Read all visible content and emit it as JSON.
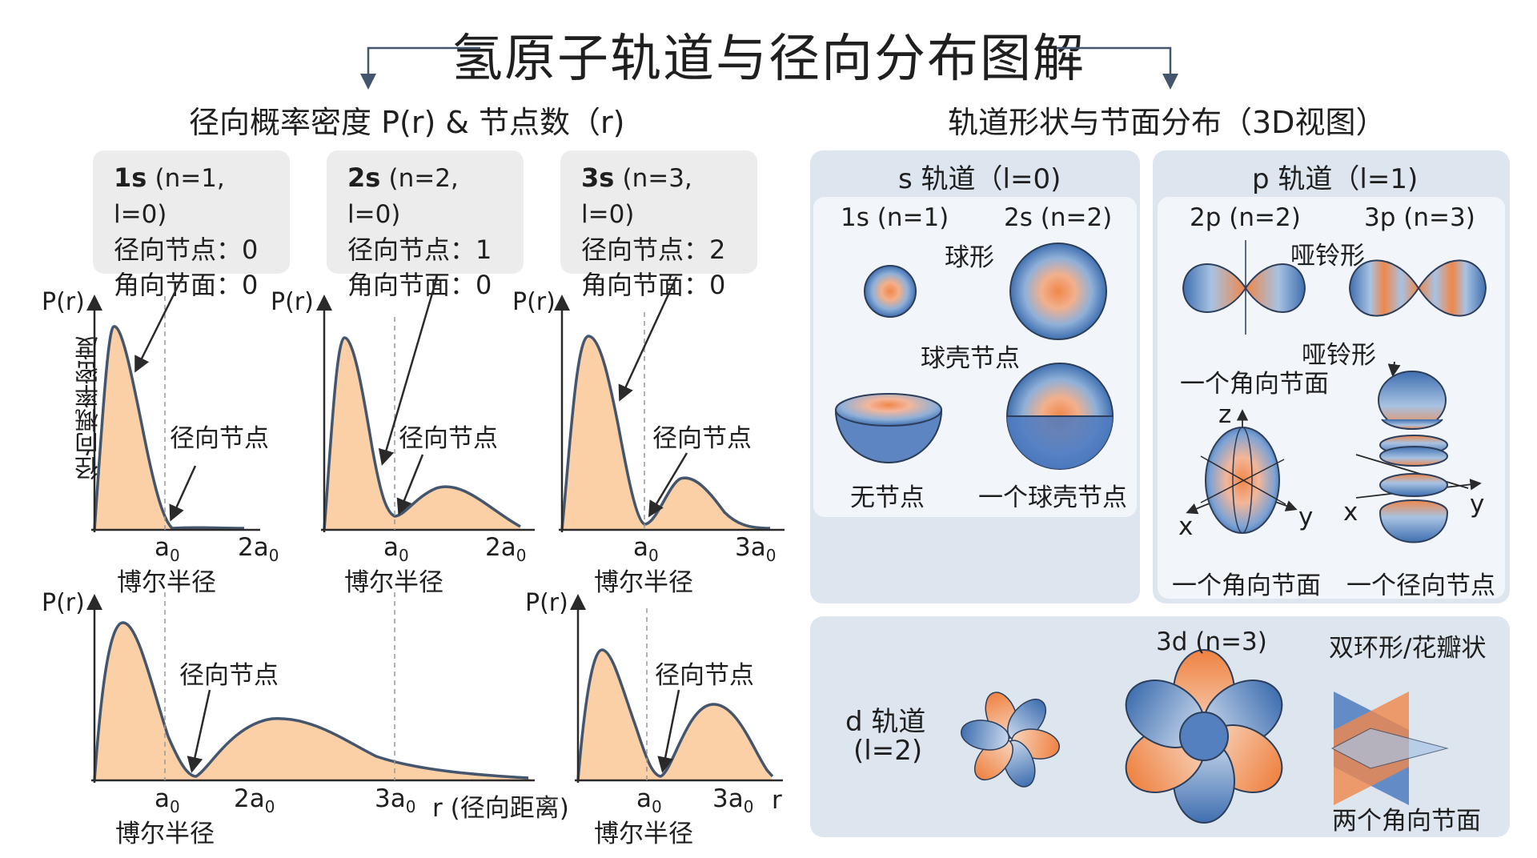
{
  "title": "氢原子轨道与径向分布图解",
  "left_section_title": "径向概率密度 P(r) & 节点数（r)",
  "right_section_title": "轨道形状与节面分布（3D视图）",
  "info_boxes": [
    {
      "name": "1s",
      "quantum": "(n=1, l=0)",
      "radial": "径向节点：0",
      "angular": "角向节面：0"
    },
    {
      "name": "2s",
      "quantum": "(n=2, l=0)",
      "radial": "径向节点：1",
      "angular": "角向节面：0"
    },
    {
      "name": "3s",
      "quantum": "(n=3, l=0)",
      "radial": "径向节点：2",
      "angular": "角向节面：0"
    }
  ],
  "plots": {
    "y_label": "P(r)",
    "y_axis_title": "径向概率密度",
    "node_label": "径向节点",
    "bohr_label": "博尔半径",
    "x_label": "r (径向距离)",
    "r_label": "r",
    "ticks": {
      "a0": "a",
      "two_a0": "2a",
      "three_a0": "3a",
      "sub": "0"
    }
  },
  "s_panel": {
    "title": "s 轨道（l=0)",
    "label_1s": "1s (n=1)",
    "label_2s": "2s (n=2)",
    "spherical": "球形",
    "shell_node": "球壳节点",
    "no_node": "无节点",
    "one_shell_node": "一个球壳节点"
  },
  "p_panel": {
    "title": "p 轨道（l=1)",
    "label_2p": "2p (n=2)",
    "label_3p": "3p (n=3)",
    "dumbbell": "哑铃形",
    "dumbbell2": "哑铃形",
    "one_angular": "一个角向节面",
    "axis_z": "z",
    "axis_x": "x",
    "axis_y": "y",
    "axis_x2": "x",
    "axis_y2": "y",
    "bottom_angular": "一个角向节面",
    "bottom_radial": "一个径向节点"
  },
  "d_panel": {
    "title": "d 轨道",
    "l_label": "(l=2)",
    "label_3d": "3d (n=3)",
    "shape": "双环形/花瓣状",
    "two_angular": "两个角向节面"
  },
  "colors": {
    "fill_orange": "#fbd0a6",
    "curve": "#44566e",
    "orbital_blue": "#4a78b8",
    "orbital_orange": "#f0874a",
    "panel_bg": "#dde5ef"
  }
}
